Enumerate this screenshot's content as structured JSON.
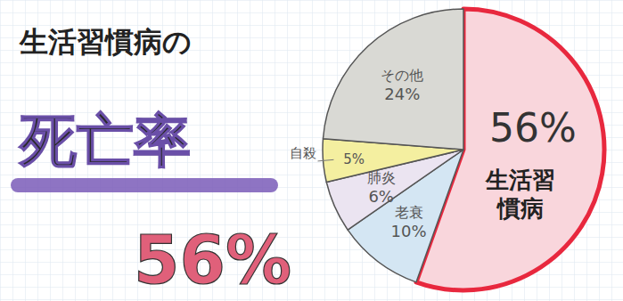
{
  "chart_data": {
    "type": "pie",
    "title": "生活習慣病の",
    "subtitle": "死亡率",
    "annotation": "56%",
    "categories": [
      "生活習慣病",
      "老衰",
      "肺炎",
      "自殺",
      "その他"
    ],
    "values": [
      56,
      10,
      6,
      5,
      24
    ],
    "value_labels": [
      "56%",
      "10%",
      "6%",
      "5%",
      "24%"
    ],
    "colors": [
      "#f9d6dc",
      "#d4e6f3",
      "#ebe4f1",
      "#f4efa0",
      "#d9d9d4"
    ],
    "data_labels": true
  }
}
